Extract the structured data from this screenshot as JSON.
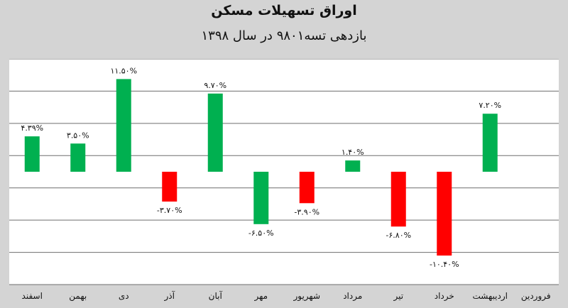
{
  "title": "اوراق تسهیلات مسکن",
  "subtitle": "بازدهی تسه۹۸۰۱ در سال ۱۳۹۸",
  "colors": {
    "positive": "#00b050",
    "negative": "#ff0000",
    "grid": "#6e6e6e",
    "plot_bg": "#ffffff"
  },
  "chart_data": {
    "type": "bar",
    "title": "اوراق تسهیلات مسکن",
    "subtitle": "بازدهی تسه۹۸۰۱ در سال ۱۳۹۸",
    "xlabel": "",
    "ylabel": "",
    "ylim": [
      -14,
      14
    ],
    "grid": true,
    "y_tick_labels_shown": false,
    "categories": [
      "فروردین",
      "اردیبهشت",
      "خرداد",
      "تیر",
      "مرداد",
      "شهریور",
      "مهر",
      "آبان",
      "آذر",
      "دی",
      "بهمن",
      "اسفند"
    ],
    "values": [
      null,
      7.2,
      -10.4,
      -6.8,
      1.4,
      -3.9,
      -6.5,
      9.7,
      -3.7,
      11.5,
      3.5,
      4.39
    ],
    "value_labels": [
      "",
      "۷.۲۰%",
      "-۱۰.۴۰%",
      "-۶.۸۰%",
      "۱.۴۰%",
      "-۳.۹۰%",
      "-۶.۵۰%",
      "۹.۷۰%",
      "-۳.۷۰%",
      "۱۱.۵۰%",
      "۳.۵۰%",
      "۴.۳۹%"
    ],
    "bar_colors": [
      "",
      "#00b050",
      "#ff0000",
      "#ff0000",
      "#00b050",
      "#ff0000",
      "#00b050",
      "#00b050",
      "#ff0000",
      "#00b050",
      "#00b050",
      "#00b050"
    ]
  }
}
